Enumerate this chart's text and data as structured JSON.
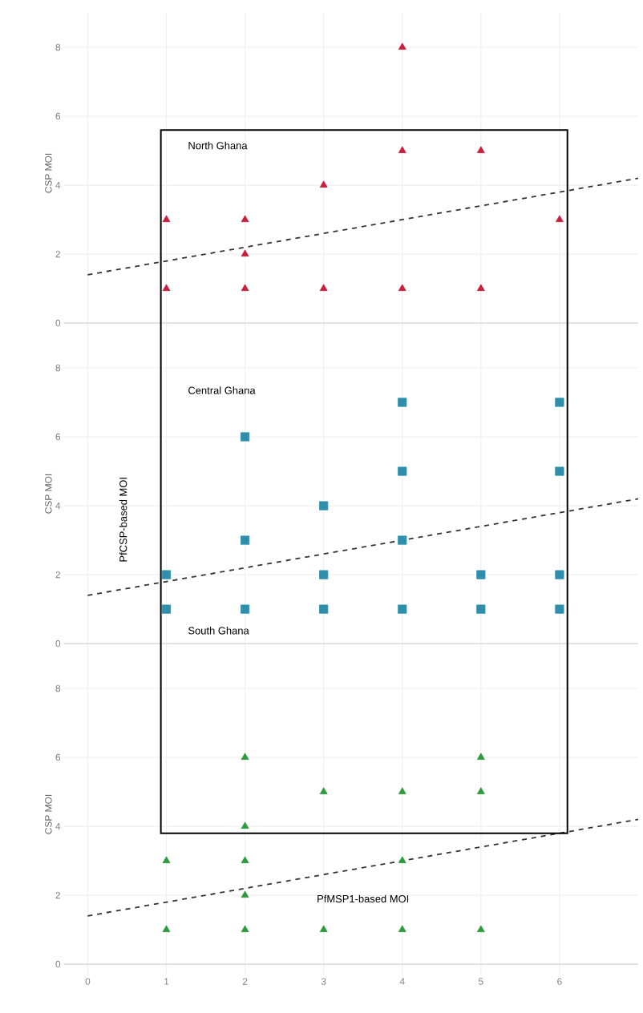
{
  "chart_data": [
    {
      "type": "scatter",
      "ylabel": "CSP MOI",
      "xlim": [
        -0.3,
        7
      ],
      "ylim": [
        -0.3,
        9
      ],
      "xticks": [
        0,
        1,
        2,
        3,
        4,
        5,
        6
      ],
      "yticks": [
        0,
        2,
        4,
        6,
        8
      ],
      "grid": true,
      "tick_labels": "y",
      "annotations": [
        "North Ghana"
      ],
      "series": [
        {
          "color": "#c8203c",
          "marker": "triangle",
          "x": [
            1,
            1,
            2,
            2,
            2,
            3,
            3,
            4,
            4,
            4,
            5,
            5,
            6
          ],
          "values": [
            3,
            1,
            3,
            2,
            1,
            4,
            1,
            8,
            5,
            1,
            5,
            1,
            3
          ]
        },
        {
          "type": "line",
          "color": "#333333",
          "line_style": "dashed",
          "x": [
            0,
            7
          ],
          "values": [
            1.4,
            4.2
          ]
        }
      ]
    },
    {
      "type": "scatter",
      "ylabel": "CSP MOI",
      "xlim": [
        -0.3,
        7
      ],
      "ylim": [
        -0.3,
        9
      ],
      "xticks": [
        0,
        1,
        2,
        3,
        4,
        5,
        6
      ],
      "yticks": [
        0,
        2,
        4,
        6,
        8
      ],
      "grid": true,
      "tick_labels": "y",
      "annotations": [
        "Central Ghana",
        "South Ghana",
        "PfCSP-based MOI"
      ],
      "series": [
        {
          "color": "#2f8fab",
          "marker": "square",
          "x": [
            1,
            1,
            2,
            2,
            2,
            3,
            3,
            3,
            4,
            4,
            4,
            4,
            5,
            5,
            6,
            6,
            6,
            6
          ],
          "values": [
            2,
            1,
            6,
            3,
            1,
            4,
            2,
            1,
            7,
            5,
            3,
            1,
            2,
            1,
            7,
            5,
            2,
            1
          ]
        },
        {
          "type": "line",
          "color": "#333333",
          "line_style": "dashed",
          "x": [
            0,
            7
          ],
          "values": [
            1.4,
            4.2
          ]
        }
      ]
    },
    {
      "type": "scatter",
      "ylabel": "CSP MOI",
      "xlim": [
        -0.3,
        7
      ],
      "ylim": [
        -0.3,
        9
      ],
      "xticks": [
        0,
        1,
        2,
        3,
        4,
        5,
        6
      ],
      "yticks": [
        0,
        2,
        4,
        6,
        8
      ],
      "grid": true,
      "annotations": [
        "PfMSP1-based MOI"
      ],
      "series": [
        {
          "color": "#2e9a40",
          "marker": "triangle",
          "x": [
            1,
            1,
            2,
            2,
            2,
            2,
            2,
            3,
            3,
            4,
            4,
            4,
            5,
            5,
            5
          ],
          "values": [
            3,
            1,
            6,
            4,
            3,
            2,
            1,
            5,
            1,
            5,
            3,
            1,
            6,
            5,
            1
          ]
        },
        {
          "type": "line",
          "color": "#333333",
          "line_style": "dashed",
          "x": [
            0,
            7
          ],
          "values": [
            1.4,
            4.2
          ]
        }
      ]
    }
  ]
}
